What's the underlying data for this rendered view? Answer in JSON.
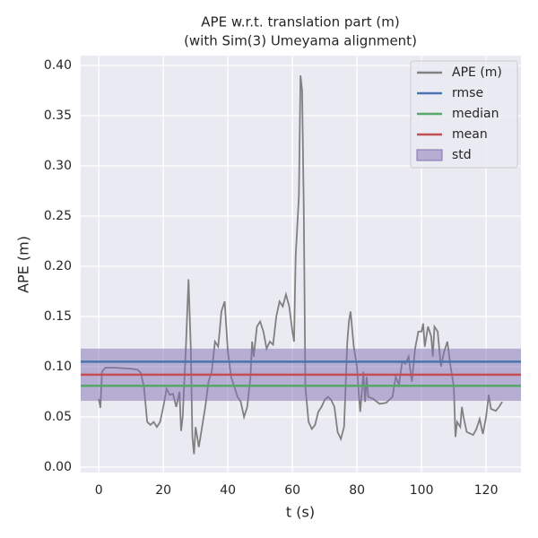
{
  "chart_data": {
    "type": "line",
    "title": "APE w.r.t. translation part (m)",
    "subtitle": "(with Sim(3) Umeyama alignment)",
    "x_label": "t (s)",
    "y_label": "APE (m)",
    "xlim": [
      -5.6,
      130.8
    ],
    "ylim": [
      -0.0054,
      0.4098
    ],
    "xticks": [
      0,
      20,
      40,
      60,
      80,
      100,
      120
    ],
    "yticks": [
      {
        "value": 0,
        "label": "0.00"
      },
      {
        "value": 0.05,
        "label": "0.05"
      },
      {
        "value": 0.1,
        "label": "0.10"
      },
      {
        "value": 0.15,
        "label": "0.15"
      },
      {
        "value": 0.2,
        "label": "0.20"
      },
      {
        "value": 0.25,
        "label": "0.25"
      },
      {
        "value": 0.3,
        "label": "0.30"
      },
      {
        "value": 0.35,
        "label": "0.35"
      },
      {
        "value": 0.4,
        "label": "0.40"
      }
    ],
    "grid": true,
    "legend": "upper right",
    "series": [
      {
        "name": "APE (m)",
        "color": "#808080",
        "x": [
          0,
          0.5,
          1,
          2,
          5,
          10,
          12,
          13,
          14,
          15,
          16,
          17,
          18,
          19,
          20,
          21,
          22,
          23,
          24,
          25,
          25.5,
          26,
          27,
          27.8,
          28.5,
          29,
          29.5,
          30,
          31,
          32,
          33,
          34,
          35,
          36,
          37,
          38,
          39,
          40,
          41,
          42,
          43,
          44,
          45,
          46,
          47,
          47.5,
          48,
          49,
          50,
          51,
          52,
          53,
          54,
          55,
          56,
          57,
          58,
          59,
          60,
          60.5,
          61,
          62,
          62.5,
          63,
          63.5,
          64,
          65,
          66,
          67,
          68,
          69,
          70,
          71,
          72,
          73,
          74,
          75,
          76,
          77,
          77.5,
          78,
          79,
          80,
          80.5,
          81,
          82,
          82.5,
          83,
          83.5,
          85,
          87,
          89,
          91,
          92,
          93,
          94,
          95,
          96,
          97,
          98,
          99,
          100,
          100.5,
          101,
          102,
          103,
          103.5,
          104,
          105,
          106,
          107,
          108,
          109,
          110,
          110.5,
          111,
          112,
          112.5,
          113,
          114,
          116,
          117,
          118,
          119,
          120,
          120.8,
          121.5,
          123,
          124,
          125
        ],
        "values": [
          0.068,
          0.059,
          0.095,
          0.099,
          0.099,
          0.098,
          0.097,
          0.094,
          0.08,
          0.045,
          0.042,
          0.045,
          0.04,
          0.045,
          0.06,
          0.078,
          0.072,
          0.073,
          0.06,
          0.075,
          0.036,
          0.05,
          0.12,
          0.187,
          0.12,
          0.03,
          0.013,
          0.04,
          0.02,
          0.04,
          0.06,
          0.085,
          0.095,
          0.125,
          0.12,
          0.155,
          0.165,
          0.115,
          0.09,
          0.08,
          0.07,
          0.065,
          0.05,
          0.06,
          0.09,
          0.125,
          0.11,
          0.14,
          0.145,
          0.135,
          0.118,
          0.125,
          0.122,
          0.15,
          0.165,
          0.16,
          0.172,
          0.16,
          0.135,
          0.125,
          0.21,
          0.27,
          0.39,
          0.375,
          0.26,
          0.08,
          0.045,
          0.038,
          0.042,
          0.055,
          0.06,
          0.067,
          0.07,
          0.067,
          0.06,
          0.035,
          0.028,
          0.04,
          0.125,
          0.145,
          0.155,
          0.12,
          0.1,
          0.075,
          0.055,
          0.095,
          0.065,
          0.09,
          0.07,
          0.068,
          0.063,
          0.064,
          0.07,
          0.09,
          0.082,
          0.105,
          0.103,
          0.11,
          0.085,
          0.118,
          0.135,
          0.135,
          0.143,
          0.12,
          0.14,
          0.13,
          0.11,
          0.14,
          0.135,
          0.1,
          0.115,
          0.125,
          0.1,
          0.08,
          0.03,
          0.045,
          0.04,
          0.06,
          0.05,
          0.035,
          0.032,
          0.038,
          0.048,
          0.033,
          0.05,
          0.072,
          0.058,
          0.056,
          0.06,
          0.065
        ]
      }
    ],
    "hlines": [
      {
        "name": "rmse",
        "color": "#4c72b0",
        "value": 0.105
      },
      {
        "name": "median",
        "color": "#55a868",
        "value": 0.081
      },
      {
        "name": "mean",
        "color": "#c44e52",
        "value": 0.092
      }
    ],
    "band": {
      "name": "std",
      "color": "#8172b2",
      "value": 0.026
    }
  }
}
